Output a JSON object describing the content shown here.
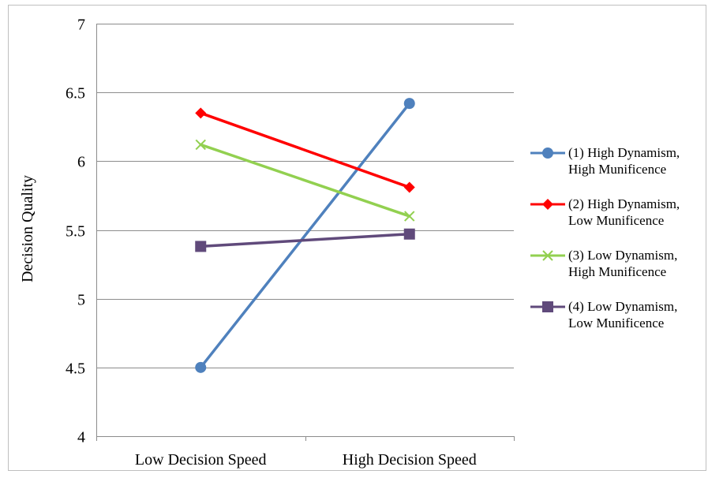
{
  "chart_data": {
    "type": "line",
    "title": "",
    "xlabel": "",
    "ylabel": "Decision Quality",
    "categories": [
      "Low Decision Speed",
      "High Decision Speed"
    ],
    "ylim": [
      4,
      7
    ],
    "yticks": [
      "4",
      "4.5",
      "5",
      "5.5",
      "6",
      "6.5",
      "7"
    ],
    "grid": true,
    "legend_position": "right",
    "series": [
      {
        "name": [
          "(1) High Dynamism,",
          "High Munificence"
        ],
        "values": [
          4.5,
          6.42
        ],
        "color": "#4f81bd",
        "marker": "circle"
      },
      {
        "name": [
          "(2) High Dynamism,",
          "Low Munificence"
        ],
        "values": [
          6.35,
          5.81
        ],
        "color": "#ff0000",
        "marker": "diamond"
      },
      {
        "name": [
          "(3) Low Dynamism,",
          "High Munificence"
        ],
        "values": [
          6.12,
          5.6
        ],
        "color": "#92d050",
        "marker": "x"
      },
      {
        "name": [
          "(4) Low Dynamism,",
          "Low Munificence"
        ],
        "values": [
          5.38,
          5.47
        ],
        "color": "#604a7b",
        "marker": "square"
      }
    ]
  }
}
